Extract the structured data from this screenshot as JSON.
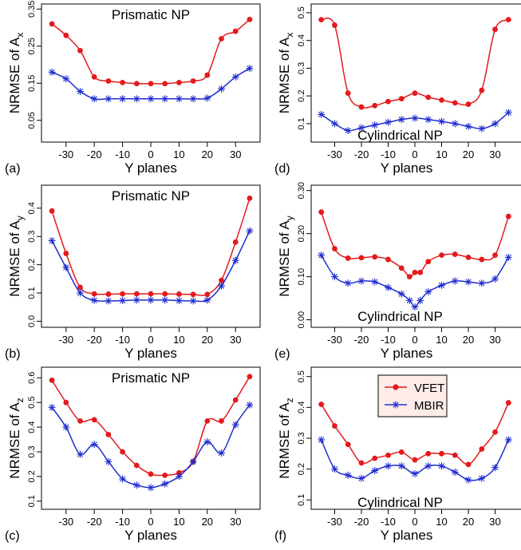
{
  "colors": {
    "VFET": "#e41a1c",
    "MBIR": "#1f2ccf"
  },
  "legend": {
    "entries": [
      "VFET",
      "MBIR"
    ],
    "placement": "top-right"
  },
  "chart_data": [
    {
      "type": "line",
      "panel": "(a)",
      "title": "Prismatic NP",
      "xlabel": "Y planes",
      "ylabel_prefix": "NRMSE of",
      "ylabel_var": "A",
      "ylabel_sub": "x",
      "xlim": [
        -37,
        37
      ],
      "ylim": [
        0.0,
        0.355
      ],
      "xticks": [
        -30,
        -20,
        -10,
        0,
        10,
        20,
        30
      ],
      "yticks": [
        0.05,
        0.15,
        0.25,
        0.35
      ],
      "ytick_labels": [
        "0.05",
        "0.15",
        "0.25",
        "0.35"
      ],
      "series": [
        {
          "name": "VFET",
          "x": [
            -35,
            -30,
            -25,
            -20,
            -15,
            -10,
            -5,
            0,
            5,
            10,
            15,
            20,
            25,
            30,
            35
          ],
          "y": [
            0.31,
            0.279,
            0.238,
            0.167,
            0.156,
            0.152,
            0.149,
            0.149,
            0.149,
            0.152,
            0.156,
            0.172,
            0.27,
            0.29,
            0.322
          ]
        },
        {
          "name": "MBIR",
          "x": [
            -35,
            -30,
            -25,
            -20,
            -15,
            -10,
            -5,
            0,
            5,
            10,
            15,
            20,
            25,
            30,
            35
          ],
          "y": [
            0.18,
            0.162,
            0.128,
            0.108,
            0.108,
            0.108,
            0.108,
            0.108,
            0.108,
            0.108,
            0.108,
            0.11,
            0.135,
            0.167,
            0.19
          ]
        }
      ]
    },
    {
      "type": "line",
      "panel": "(b)",
      "title": "Prismatic NP",
      "xlabel": "Y planes",
      "ylabel_prefix": "NRMSE of",
      "ylabel_var": "A",
      "ylabel_sub": "y",
      "xlim": [
        -37,
        37
      ],
      "ylim": [
        -0.01,
        0.47
      ],
      "xticks": [
        -30,
        -20,
        -10,
        0,
        10,
        20,
        30
      ],
      "yticks": [
        0,
        0.1,
        0.2,
        0.3,
        0.4
      ],
      "ytick_labels": [
        "0.0",
        "0.1",
        "0.2",
        "0.3",
        "0.4"
      ],
      "series": [
        {
          "name": "VFET",
          "x": [
            -35,
            -30,
            -25,
            -20,
            -15,
            -10,
            -5,
            0,
            5,
            10,
            15,
            20,
            25,
            30,
            35
          ],
          "y": [
            0.39,
            0.24,
            0.12,
            0.097,
            0.096,
            0.097,
            0.097,
            0.097,
            0.097,
            0.096,
            0.095,
            0.095,
            0.145,
            0.28,
            0.435
          ]
        },
        {
          "name": "MBIR",
          "x": [
            -35,
            -30,
            -25,
            -20,
            -15,
            -10,
            -5,
            0,
            5,
            10,
            15,
            20,
            25,
            30,
            35
          ],
          "y": [
            0.285,
            0.19,
            0.1,
            0.074,
            0.072,
            0.073,
            0.075,
            0.075,
            0.075,
            0.073,
            0.072,
            0.075,
            0.125,
            0.215,
            0.32
          ]
        }
      ]
    },
    {
      "type": "line",
      "panel": "(c)",
      "title": "Prismatic NP",
      "xlabel": "Y planes",
      "ylabel_prefix": "NRMSE of",
      "ylabel_var": "A",
      "ylabel_sub": "z",
      "xlim": [
        -37,
        37
      ],
      "ylim": [
        0.08,
        0.63
      ],
      "xticks": [
        -30,
        -20,
        -10,
        0,
        10,
        20,
        30
      ],
      "yticks": [
        0.1,
        0.2,
        0.3,
        0.4,
        0.5,
        0.6
      ],
      "ytick_labels": [
        "0.1",
        "0.2",
        "0.3",
        "0.4",
        "0.5",
        "0.6"
      ],
      "series": [
        {
          "name": "VFET",
          "x": [
            -35,
            -30,
            -25,
            -20,
            -15,
            -10,
            -5,
            0,
            5,
            10,
            15,
            20,
            25,
            30,
            35
          ],
          "y": [
            0.59,
            0.5,
            0.425,
            0.43,
            0.37,
            0.3,
            0.245,
            0.21,
            0.205,
            0.215,
            0.26,
            0.425,
            0.425,
            0.51,
            0.605
          ]
        },
        {
          "name": "MBIR",
          "x": [
            -35,
            -30,
            -25,
            -20,
            -15,
            -10,
            -5,
            0,
            5,
            10,
            15,
            20,
            25,
            30,
            35
          ],
          "y": [
            0.48,
            0.4,
            0.29,
            0.33,
            0.26,
            0.19,
            0.165,
            0.155,
            0.17,
            0.2,
            0.26,
            0.34,
            0.295,
            0.41,
            0.49
          ]
        }
      ]
    },
    {
      "type": "line",
      "panel": "(d)",
      "title": "Cylindrical NP",
      "xlabel": "Y planes",
      "ylabel_prefix": "NRMSE of",
      "ylabel_var": "A",
      "ylabel_sub": "x",
      "xlim": [
        -37,
        37
      ],
      "ylim": [
        0.045,
        0.52
      ],
      "xticks": [
        -30,
        -20,
        -10,
        0,
        10,
        20,
        30
      ],
      "yticks": [
        0.1,
        0.2,
        0.3,
        0.4,
        0.5
      ],
      "ytick_labels": [
        "0.1",
        "0.2",
        "0.3",
        "0.4",
        "0.5"
      ],
      "series": [
        {
          "name": "VFET",
          "x": [
            -35,
            -30,
            -25,
            -20,
            -15,
            -10,
            -5,
            0,
            5,
            10,
            15,
            20,
            25,
            30,
            35
          ],
          "y": [
            0.475,
            0.455,
            0.21,
            0.16,
            0.165,
            0.18,
            0.19,
            0.21,
            0.195,
            0.185,
            0.175,
            0.17,
            0.22,
            0.44,
            0.475
          ]
        },
        {
          "name": "MBIR",
          "x": [
            -35,
            -30,
            -25,
            -20,
            -15,
            -10,
            -5,
            0,
            5,
            10,
            15,
            20,
            25,
            30,
            35
          ],
          "y": [
            0.133,
            0.1,
            0.075,
            0.085,
            0.095,
            0.105,
            0.115,
            0.12,
            0.115,
            0.108,
            0.1,
            0.09,
            0.082,
            0.1,
            0.14
          ]
        }
      ]
    },
    {
      "type": "line",
      "panel": "(e)",
      "title": "Cylindrical NP",
      "xlabel": "Y planes",
      "ylabel_prefix": "NRMSE of",
      "ylabel_var": "A",
      "ylabel_sub": "y",
      "xlim": [
        -37,
        37
      ],
      "ylim": [
        -0.01,
        0.305
      ],
      "xticks": [
        -30,
        -20,
        -10,
        0,
        10,
        20,
        30
      ],
      "yticks": [
        0,
        0.1,
        0.2,
        0.3
      ],
      "ytick_labels": [
        "0.00",
        "0.10",
        "0.20",
        "0.30"
      ],
      "series": [
        {
          "name": "VFET",
          "x": [
            -35,
            -30,
            -25,
            -20,
            -15,
            -10,
            -5,
            -2,
            0,
            2,
            5,
            10,
            15,
            20,
            25,
            30,
            35
          ],
          "y": [
            0.25,
            0.165,
            0.143,
            0.144,
            0.146,
            0.14,
            0.12,
            0.1,
            0.11,
            0.11,
            0.135,
            0.15,
            0.152,
            0.145,
            0.14,
            0.15,
            0.24
          ]
        },
        {
          "name": "MBIR",
          "x": [
            -35,
            -30,
            -25,
            -20,
            -15,
            -10,
            -5,
            -2,
            0,
            2,
            5,
            10,
            15,
            20,
            25,
            30,
            35
          ],
          "y": [
            0.15,
            0.1,
            0.085,
            0.09,
            0.088,
            0.075,
            0.06,
            0.045,
            0.03,
            0.045,
            0.065,
            0.08,
            0.09,
            0.088,
            0.085,
            0.095,
            0.145
          ]
        }
      ]
    },
    {
      "type": "line",
      "panel": "(f)",
      "title": "Cylindrical NP",
      "xlabel": "Y planes",
      "ylabel_prefix": "NRMSE of",
      "ylabel_var": "A",
      "ylabel_sub": "z",
      "xlim": [
        -37,
        37
      ],
      "ylim": [
        0.08,
        0.52
      ],
      "xticks": [
        -30,
        -20,
        -10,
        0,
        10,
        20,
        30
      ],
      "yticks": [
        0.1,
        0.2,
        0.3,
        0.4,
        0.5
      ],
      "ytick_labels": [
        "0.1",
        "0.2",
        "0.3",
        "0.4",
        "0.5"
      ],
      "series": [
        {
          "name": "VFET",
          "x": [
            -35,
            -30,
            -25,
            -20,
            -15,
            -10,
            -5,
            0,
            5,
            10,
            15,
            20,
            25,
            30,
            35
          ],
          "y": [
            0.41,
            0.34,
            0.28,
            0.22,
            0.235,
            0.245,
            0.255,
            0.23,
            0.25,
            0.25,
            0.245,
            0.215,
            0.265,
            0.32,
            0.415
          ]
        },
        {
          "name": "MBIR",
          "x": [
            -35,
            -30,
            -25,
            -20,
            -15,
            -10,
            -5,
            0,
            5,
            10,
            15,
            20,
            25,
            30,
            35
          ],
          "y": [
            0.295,
            0.2,
            0.18,
            0.17,
            0.195,
            0.21,
            0.21,
            0.185,
            0.21,
            0.21,
            0.19,
            0.165,
            0.17,
            0.205,
            0.295
          ]
        }
      ]
    }
  ]
}
